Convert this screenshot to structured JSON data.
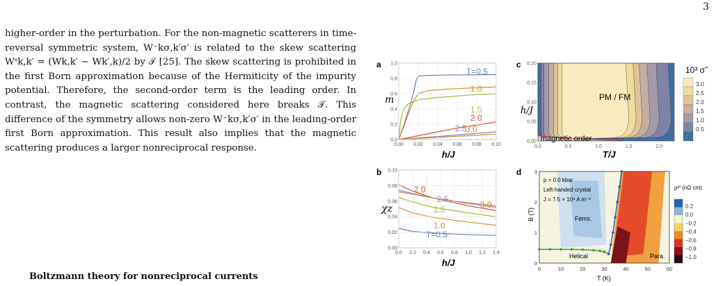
{
  "page_number": "3",
  "body_paragraph": "higher-order in the perturbation. For the non-magnetic scatterers in time-reversal symmetric system, W⁻kσ,k′σ′ is related to the skew scattering Wˢk,k′ = (Wk,k′ − Wk′,k)/2 by 𝒯 [25]. The skew scattering is prohibited in the first Born approximation because of the Hermiticity of the impurity potential. Therefore, the second-order term is the leading order. In contrast, the magnetic scattering considered here breaks 𝒯. This difference of the symmetry allows non-zero W⁻kσ,k′σ′ in the leading-order first Born approximation. This result also implies that the magnetic scattering produces a larger nonreciprocal response.",
  "section_heading": "Boltzmann theory for nonreciprocal currents",
  "chart_data": [
    {
      "panel": "a",
      "type": "line",
      "ylabel": "m",
      "xlabel": "h/J",
      "xlim": [
        0,
        0.1
      ],
      "ylim": [
        0,
        1.0
      ],
      "xticks": [
        "0.00",
        "0.02",
        "0.04",
        "0.06",
        "0.08",
        "0.10"
      ],
      "yticks": [
        "0.0",
        "0.2",
        "0.4",
        "0.6",
        "0.8",
        "1.0"
      ],
      "series": [
        {
          "name": "T=0.5",
          "color": "#5b7fb5",
          "x": [
            0,
            0.005,
            0.01,
            0.015,
            0.018,
            0.02,
            0.03,
            0.05,
            0.1
          ],
          "y": [
            0,
            0.18,
            0.38,
            0.6,
            0.78,
            0.83,
            0.84,
            0.845,
            0.85
          ]
        },
        {
          "name": "1.0",
          "color": "#e08a2c",
          "x": [
            0,
            0.005,
            0.01,
            0.015,
            0.02,
            0.03,
            0.05,
            0.1
          ],
          "y": [
            0,
            0.16,
            0.34,
            0.5,
            0.6,
            0.64,
            0.66,
            0.69
          ]
        },
        {
          "name": "1.5",
          "color": "#a8b832",
          "x": [
            0,
            0.002,
            0.005,
            0.01,
            0.02,
            0.04,
            0.07,
            0.1
          ],
          "y": [
            0,
            0.25,
            0.4,
            0.47,
            0.52,
            0.55,
            0.58,
            0.6
          ]
        },
        {
          "name": "2.0",
          "color": "#d94a3a",
          "x": [
            0,
            0.02,
            0.04,
            0.06,
            0.08,
            0.1
          ],
          "y": [
            0,
            0.05,
            0.1,
            0.15,
            0.19,
            0.23
          ]
        },
        {
          "name": "2.5",
          "color": "#8a7dbf",
          "x": [
            0,
            0.05,
            0.1
          ],
          "y": [
            0,
            0.05,
            0.1
          ]
        },
        {
          "name": "3.0",
          "color": "#c58a3c",
          "x": [
            0,
            0.05,
            0.1
          ],
          "y": [
            0,
            0.035,
            0.07
          ]
        }
      ]
    },
    {
      "panel": "b",
      "type": "line",
      "ylabel": "χz",
      "xlabel": "h/J",
      "xlim": [
        0,
        1.4
      ],
      "ylim": [
        0,
        0.1
      ],
      "xticks": [
        "0.0",
        "0.2",
        "0.4",
        "0.6",
        "0.8",
        "1.0",
        "1.2",
        "1.4"
      ],
      "yticks": [
        "0.00",
        "0.02",
        "0.04",
        "0.06",
        "0.08",
        "0.10"
      ],
      "series": [
        {
          "name": "T=0.5",
          "color": "#5b7fb5",
          "x": [
            0,
            0.2,
            0.5,
            1.0,
            1.4
          ],
          "y": [
            0.025,
            0.021,
            0.019,
            0.017,
            0.016
          ]
        },
        {
          "name": "1.0",
          "color": "#e08a2c",
          "x": [
            0,
            0.2,
            0.5,
            1.0,
            1.4
          ],
          "y": [
            0.052,
            0.045,
            0.039,
            0.033,
            0.029
          ]
        },
        {
          "name": "1.5",
          "color": "#a8b832",
          "x": [
            0,
            0.2,
            0.5,
            1.0,
            1.4
          ],
          "y": [
            0.065,
            0.059,
            0.052,
            0.045,
            0.04
          ]
        },
        {
          "name": "2.0",
          "color": "#d94a3a",
          "x": [
            0,
            0.2,
            0.5,
            1.0,
            1.4
          ],
          "y": [
            0.081,
            0.073,
            0.064,
            0.054,
            0.048
          ]
        },
        {
          "name": "2.5",
          "color": "#8a7dbf",
          "x": [
            0,
            0.2,
            0.5,
            1.0,
            1.4
          ],
          "y": [
            0.074,
            0.07,
            0.064,
            0.057,
            0.052
          ]
        },
        {
          "name": "3.0",
          "color": "#c58a3c",
          "x": [
            0,
            0.2,
            0.5,
            1.0,
            1.4
          ],
          "y": [
            0.072,
            0.069,
            0.064,
            0.058,
            0.054
          ]
        }
      ]
    },
    {
      "panel": "c",
      "type": "heatmap",
      "ylabel": "h/J",
      "xlabel": "T/J",
      "xlim": [
        0,
        2.25
      ],
      "ylim": [
        0,
        0.2
      ],
      "xticks": [
        "0.0",
        "0.5",
        "1.0",
        "1.5",
        "2.0"
      ],
      "yticks": [
        "0.00",
        "0.05",
        "0.10",
        "0.15",
        "0.20"
      ],
      "region_labels": [
        "PM / FM",
        "magnetic order"
      ],
      "colorbar_title": "10³ σ̃",
      "colorbar_ticks": [
        "3.0",
        "2.5",
        "2.0",
        "1.5",
        "1.0",
        "0.5"
      ],
      "colors": [
        "#3d6e9e",
        "#7d84a6",
        "#a59aa9",
        "#c3ae9f",
        "#dfc497",
        "#f0dba0",
        "#f8ebbf"
      ],
      "boundary_color": "#e03030"
    },
    {
      "panel": "d",
      "type": "heatmap",
      "ylabel": "B (T)",
      "xlabel": "T (K)",
      "xlim": [
        0,
        60
      ],
      "ylim": [
        0,
        3
      ],
      "xticks": [
        "0",
        "10",
        "20",
        "30",
        "40",
        "50",
        "60"
      ],
      "yticks": [
        "0",
        "1",
        "2",
        "3"
      ],
      "annotations": [
        "p = 0.0 kbar",
        "Left-handed crystal",
        "J = 7.5 × 10⁸ A m⁻²"
      ],
      "region_labels": [
        "Ferro.",
        "Helical",
        "Para."
      ],
      "colorbar_title": "ρ²ᶠ (nΩ cm)",
      "colorbar_ticks": [
        "0.2",
        "0.0",
        "−0.2",
        "−0.4",
        "−0.6",
        "−0.8",
        "−1.0"
      ],
      "green_line": {
        "x": [
          0,
          5,
          10,
          15,
          20,
          25,
          28,
          30,
          32
        ],
        "y": [
          0.45,
          0.45,
          0.45,
          0.45,
          0.44,
          0.42,
          0.4,
          0.37,
          0.3
        ]
      },
      "blue_line": {
        "x": [
          32,
          33,
          34,
          35,
          36,
          37,
          38
        ],
        "y": [
          0.3,
          0.6,
          1.0,
          1.5,
          2.0,
          2.5,
          3.0
        ]
      }
    }
  ],
  "panel_labels": [
    "a",
    "b",
    "c",
    "d"
  ]
}
